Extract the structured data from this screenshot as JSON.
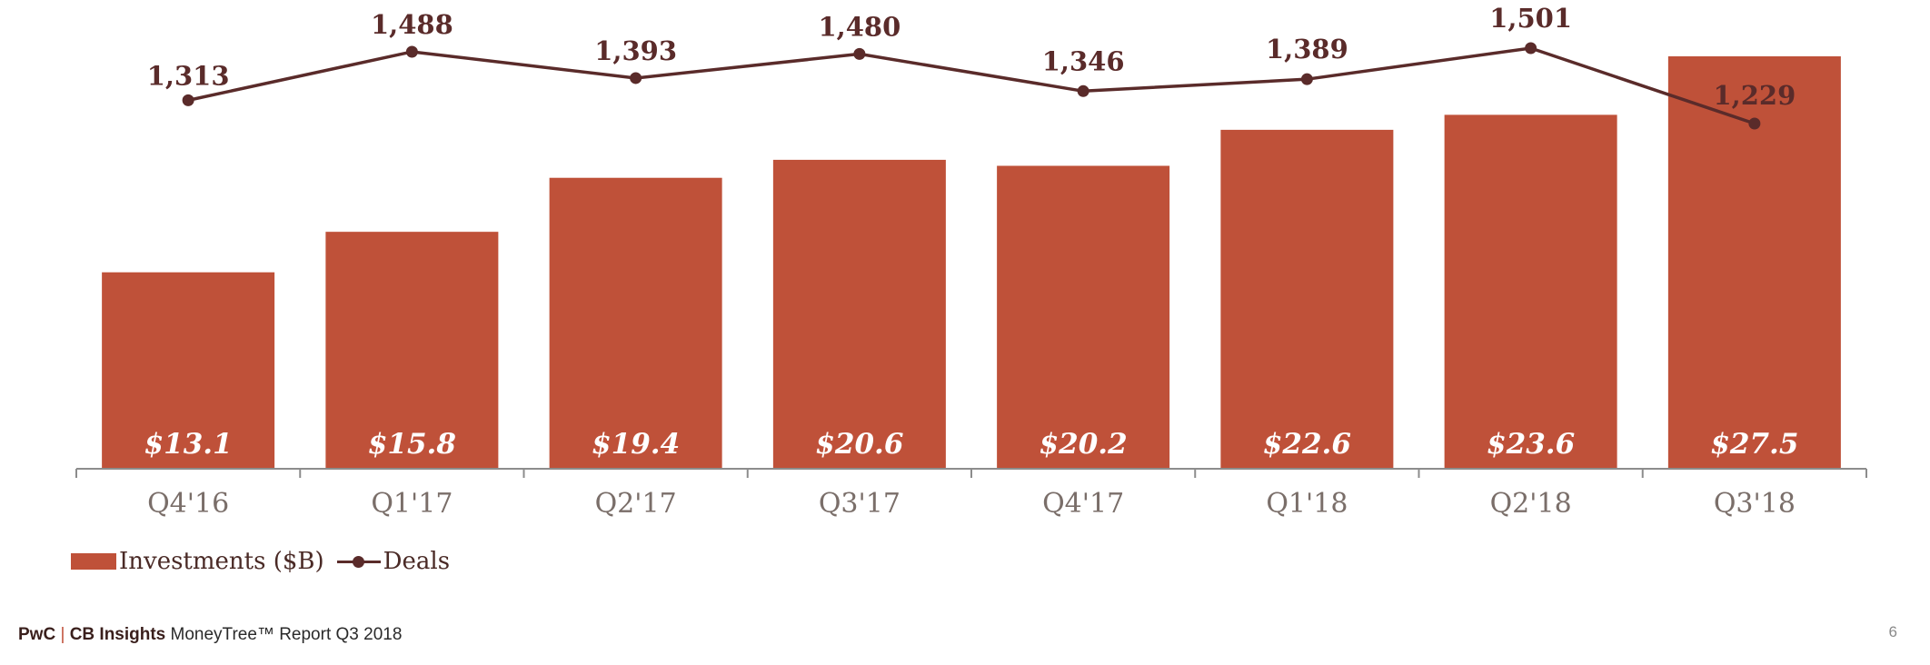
{
  "chart_data": {
    "type": "bar",
    "categories": [
      "Q4'16",
      "Q1'17",
      "Q2'17",
      "Q3'17",
      "Q4'17",
      "Q1'18",
      "Q2'18",
      "Q3'18"
    ],
    "series": [
      {
        "name": "Investments ($B)",
        "type": "bar",
        "values": [
          13.1,
          15.8,
          19.4,
          20.6,
          20.2,
          22.6,
          23.6,
          27.5
        ],
        "labels": [
          "$13.1",
          "$15.8",
          "$19.4",
          "$20.6",
          "$20.2",
          "$22.6",
          "$23.6",
          "$27.5"
        ],
        "color": "#bf5139"
      },
      {
        "name": "Deals",
        "type": "line",
        "values": [
          1313,
          1488,
          1393,
          1480,
          1346,
          1389,
          1501,
          1229
        ],
        "labels": [
          "1,313",
          "1,488",
          "1,393",
          "1,480",
          "1,346",
          "1,389",
          "1,501",
          "1,229"
        ],
        "color": "#5a2b2a"
      }
    ],
    "legend": {
      "position": "bottom-left",
      "items": [
        "Investments ($B)",
        "Deals"
      ]
    },
    "grid": false
  },
  "footer": {
    "brand_1": "PwC",
    "separator": "|",
    "brand_2": "CB Insights",
    "title": "MoneyTree™ Report Q3 2018"
  },
  "page_number": "6"
}
